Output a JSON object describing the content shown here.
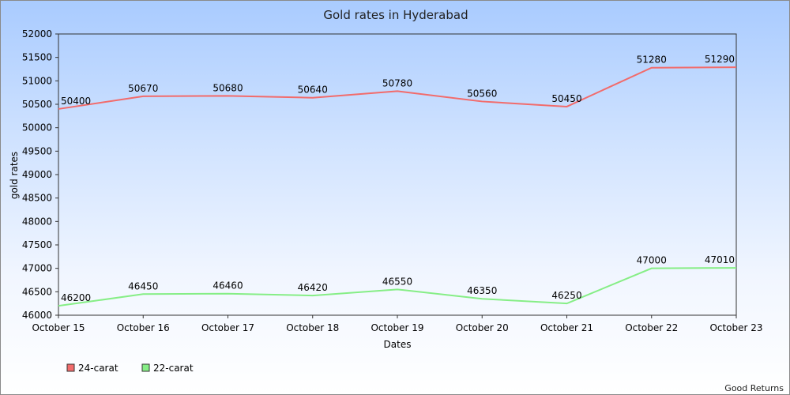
{
  "chart_data": {
    "type": "line",
    "title": "Gold rates in Hyderabad",
    "xlabel": "Dates",
    "ylabel": "gold rates",
    "categories": [
      "October 15",
      "October 16",
      "October 17",
      "October 18",
      "October 19",
      "October 20",
      "October 21",
      "October 22",
      "October 23"
    ],
    "ylim": [
      46000,
      52000
    ],
    "yticks": [
      46000,
      46500,
      47000,
      47500,
      48000,
      48500,
      49000,
      49500,
      50000,
      50500,
      51000,
      51500,
      52000
    ],
    "series": [
      {
        "name": "24-carat",
        "color": "#f26b6b",
        "values": [
          50400,
          50670,
          50680,
          50640,
          50780,
          50560,
          50450,
          51280,
          51290
        ]
      },
      {
        "name": "22-carat",
        "color": "#86ee86",
        "values": [
          46200,
          46450,
          46460,
          46420,
          46550,
          46350,
          46250,
          47000,
          47010
        ]
      }
    ],
    "legend_position": "bottom-left",
    "grid": false
  },
  "footer": {
    "credit": "Good Returns"
  }
}
